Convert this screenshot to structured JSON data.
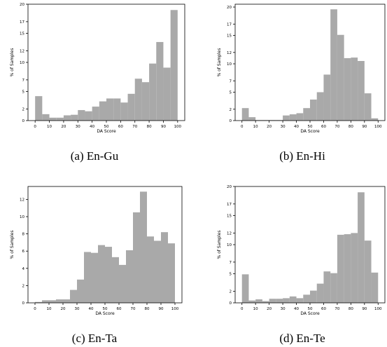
{
  "chart_data": [
    {
      "type": "bar",
      "caption": "(a) En-Gu",
      "xlabel": "DA Score",
      "ylabel": "% of Samples",
      "xlim": [
        -5,
        105
      ],
      "ylim": [
        0,
        20
      ],
      "bin_width": 5,
      "bin_starts": [
        0,
        5,
        10,
        15,
        20,
        25,
        30,
        35,
        40,
        45,
        50,
        55,
        60,
        65,
        70,
        75,
        80,
        85,
        90,
        95
      ],
      "values": [
        4.2,
        1.1,
        0.5,
        0.5,
        0.9,
        1.0,
        1.8,
        1.6,
        2.4,
        3.3,
        3.8,
        3.8,
        3.1,
        4.6,
        7.2,
        6.6,
        9.8,
        13.5,
        9.1,
        19.0
      ],
      "xticks": [
        0,
        10,
        20,
        30,
        40,
        50,
        60,
        70,
        80,
        90,
        100
      ],
      "yticks": [
        0,
        2,
        5,
        7,
        10,
        12,
        15,
        17,
        20
      ],
      "bar_color": "#a9a9a9",
      "grid": false
    },
    {
      "type": "bar",
      "caption": "(b) En-Hi",
      "xlabel": "DA Score",
      "ylabel": "% of Samples",
      "xlim": [
        -5,
        105
      ],
      "ylim": [
        0,
        20.5
      ],
      "bin_width": 5,
      "bin_starts": [
        0,
        5,
        10,
        15,
        20,
        25,
        30,
        35,
        40,
        45,
        50,
        55,
        60,
        65,
        70,
        75,
        80,
        85,
        90,
        95
      ],
      "values": [
        2.2,
        0.6,
        0.1,
        0.1,
        0.1,
        0.1,
        0.9,
        1.1,
        1.3,
        2.2,
        3.7,
        5.0,
        8.1,
        19.6,
        15.1,
        11.0,
        11.1,
        10.5,
        4.8,
        0.4
      ],
      "xticks": [
        0,
        10,
        20,
        30,
        40,
        50,
        60,
        70,
        80,
        90,
        100
      ],
      "yticks": [
        0,
        2,
        5,
        7,
        10,
        12,
        15,
        17,
        20
      ],
      "bar_color": "#a9a9a9",
      "grid": false
    },
    {
      "type": "bar",
      "caption": "(c) En-Ta",
      "xlabel": "DA Score",
      "ylabel": "% of Samples",
      "xlim": [
        -5,
        105
      ],
      "ylim": [
        0,
        13.5
      ],
      "bin_width": 5,
      "bin_starts": [
        0,
        5,
        10,
        15,
        20,
        25,
        30,
        35,
        40,
        45,
        50,
        55,
        60,
        65,
        70,
        75,
        80,
        85,
        90,
        95
      ],
      "values": [
        0.1,
        0.3,
        0.3,
        0.4,
        0.4,
        1.5,
        2.7,
        5.9,
        5.8,
        6.7,
        6.5,
        5.3,
        4.4,
        6.1,
        10.5,
        12.9,
        7.7,
        7.2,
        8.2,
        6.9
      ],
      "xticks": [
        0,
        10,
        20,
        30,
        40,
        50,
        60,
        70,
        80,
        90,
        100
      ],
      "yticks": [
        0,
        2,
        4,
        6,
        8,
        10,
        12
      ],
      "bar_color": "#a9a9a9",
      "grid": false
    },
    {
      "type": "bar",
      "caption": "(d) En-Te",
      "xlabel": "DA Score",
      "ylabel": "% of Samples",
      "xlim": [
        -5,
        105
      ],
      "ylim": [
        0,
        20
      ],
      "bin_width": 5,
      "bin_starts": [
        0,
        5,
        10,
        15,
        20,
        25,
        30,
        35,
        40,
        45,
        50,
        55,
        60,
        65,
        70,
        75,
        80,
        85,
        90,
        95
      ],
      "values": [
        4.9,
        0.4,
        0.6,
        0.3,
        0.7,
        0.7,
        0.8,
        1.1,
        0.8,
        1.4,
        2.1,
        3.3,
        5.4,
        5.1,
        11.7,
        11.8,
        12.0,
        19.0,
        10.7,
        5.2
      ],
      "xticks": [
        0,
        10,
        20,
        30,
        40,
        50,
        60,
        70,
        80,
        90,
        100
      ],
      "yticks": [
        0,
        2,
        5,
        7,
        10,
        12,
        15,
        17,
        20
      ],
      "bar_color": "#a9a9a9",
      "grid": false
    }
  ]
}
